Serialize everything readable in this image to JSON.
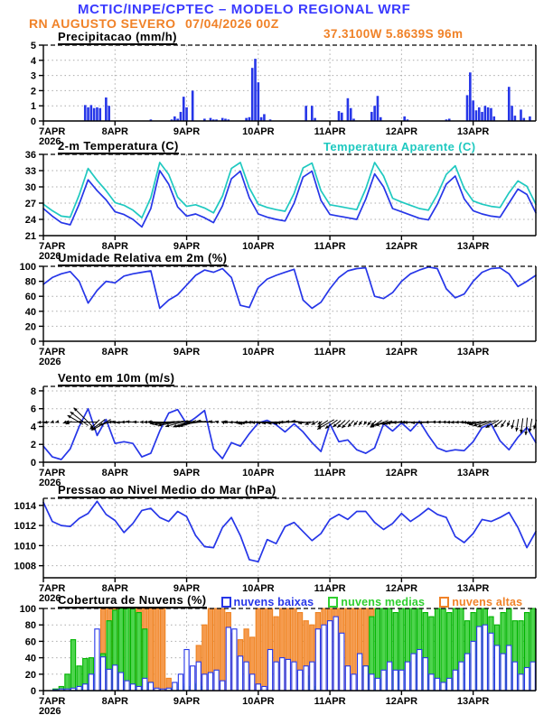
{
  "header": {
    "title": "MCTIC/INPE/CPTEC – MODELO REGIONAL WRF",
    "station": "RN AUGUSTO SEVERO",
    "run": "07/04/2026 00Z",
    "location": "37.3100W 5.8639S 96m"
  },
  "colors": {
    "header_blue": "#3a3aff",
    "orange_text": "#f08228",
    "blue": "#2636e8",
    "cyan": "#1fc9c0",
    "green_text": "#2fcf2f",
    "green_fill": "#4ed44e",
    "green_stroke": "#00b400",
    "orange_fill": "#f59b4e",
    "orange_stroke": "#ef8322",
    "grid": "#aaaaaa"
  },
  "x_axis": {
    "day_labels": [
      "7APR",
      "8APR",
      "9APR",
      "10APR",
      "11APR",
      "12APR",
      "13APR"
    ],
    "year_label": "2026",
    "hours_total": 165,
    "day_tick_hours": [
      0,
      24,
      48,
      72,
      96,
      120,
      144
    ]
  },
  "chart_data": [
    {
      "id": "precip",
      "type": "bar",
      "title": "Precipitacao (mm/h)",
      "ylim": [
        0,
        5
      ],
      "yticks": [
        0,
        1,
        2,
        3,
        4,
        5
      ],
      "bars": [
        [
          14,
          1.05
        ],
        [
          15,
          0.9
        ],
        [
          16,
          1.05
        ],
        [
          17,
          0.85
        ],
        [
          18,
          0.9
        ],
        [
          19,
          0.85
        ],
        [
          21,
          1.55
        ],
        [
          22,
          1.0
        ],
        [
          36,
          0.1
        ],
        [
          43,
          0.1
        ],
        [
          44,
          0.3
        ],
        [
          45,
          0.15
        ],
        [
          46,
          0.6
        ],
        [
          47,
          1.6
        ],
        [
          48,
          0.9
        ],
        [
          50,
          2.0
        ],
        [
          54,
          0.15
        ],
        [
          56,
          0.2
        ],
        [
          57,
          0.1
        ],
        [
          58,
          0.1
        ],
        [
          60,
          0.2
        ],
        [
          61,
          0.15
        ],
        [
          62,
          0.1
        ],
        [
          68,
          0.2
        ],
        [
          69,
          0.25
        ],
        [
          70,
          3.5
        ],
        [
          71,
          4.1
        ],
        [
          72,
          2.55
        ],
        [
          73,
          0.25
        ],
        [
          74,
          0.45
        ],
        [
          76,
          0.1
        ],
        [
          88,
          1.0
        ],
        [
          90,
          1.0
        ],
        [
          91,
          0.2
        ],
        [
          99,
          0.65
        ],
        [
          100,
          0.55
        ],
        [
          102,
          1.5
        ],
        [
          103,
          0.85
        ],
        [
          104,
          0.15
        ],
        [
          110,
          0.6
        ],
        [
          111,
          1.0
        ],
        [
          112,
          1.65
        ],
        [
          113,
          0.25
        ],
        [
          121,
          0.3
        ],
        [
          122,
          0.1
        ],
        [
          135,
          0.1
        ],
        [
          136,
          0.15
        ],
        [
          142,
          1.7
        ],
        [
          143,
          3.2
        ],
        [
          144,
          1.35
        ],
        [
          145,
          0.7
        ],
        [
          146,
          0.9
        ],
        [
          147,
          0.6
        ],
        [
          148,
          1.0
        ],
        [
          149,
          0.9
        ],
        [
          150,
          0.85
        ],
        [
          151,
          0.3
        ],
        [
          156,
          2.25
        ],
        [
          157,
          1.0
        ],
        [
          158,
          0.35
        ],
        [
          160,
          0.75
        ],
        [
          161,
          0.2
        ],
        [
          163,
          0.3
        ]
      ]
    },
    {
      "id": "temp",
      "type": "line",
      "title": "2-m Temperatura (C)",
      "right_label": "Temperatura Aparente (C)",
      "ylim": [
        21,
        36
      ],
      "yticks": [
        21,
        24,
        27,
        30,
        33,
        36
      ],
      "step_hours": 3,
      "series": [
        {
          "name": "2-m Temperatura (C)",
          "color_key": "blue",
          "values": [
            26.0,
            24.6,
            23.4,
            23.0,
            26.8,
            31.3,
            29.3,
            27.6,
            25.4,
            24.9,
            24.0,
            22.6,
            26.0,
            33.0,
            30.5,
            26.3,
            24.6,
            25.0,
            24.3,
            23.4,
            26.5,
            31.5,
            32.9,
            28.0,
            25.0,
            24.4,
            24.0,
            23.7,
            27.0,
            31.8,
            32.9,
            27.5,
            24.9,
            24.6,
            24.3,
            24.0,
            27.7,
            32.4,
            30.0,
            26.0,
            25.4,
            24.8,
            24.2,
            23.9,
            26.8,
            30.5,
            32.0,
            27.8,
            25.6,
            25.0,
            24.6,
            24.4,
            27.0,
            29.6,
            28.6,
            25.2
          ]
        },
        {
          "name": "Temperatura Aparente (C)",
          "color_key": "cyan",
          "values": [
            26.8,
            25.6,
            24.6,
            24.4,
            28.5,
            33.4,
            31.2,
            29.3,
            27.1,
            26.6,
            25.7,
            24.3,
            28.0,
            34.5,
            32.3,
            28.1,
            26.4,
            26.7,
            26.1,
            25.2,
            28.3,
            33.4,
            34.5,
            29.8,
            26.8,
            26.2,
            25.8,
            25.5,
            28.8,
            33.5,
            34.4,
            29.3,
            26.7,
            26.4,
            26.1,
            25.8,
            29.6,
            34.5,
            32.0,
            27.9,
            27.2,
            26.6,
            26.0,
            25.7,
            28.6,
            32.3,
            33.9,
            29.7,
            27.4,
            26.8,
            26.4,
            26.2,
            28.9,
            31.1,
            30.1,
            26.8
          ]
        }
      ]
    },
    {
      "id": "humidity",
      "type": "line",
      "title": "Umidade Relativa em 2m (%)",
      "ylim": [
        0,
        100
      ],
      "yticks": [
        0,
        20,
        40,
        60,
        80,
        100
      ],
      "step_hours": 3,
      "series": [
        {
          "name": "Umidade Relativa",
          "color_key": "blue",
          "values": [
            76,
            85,
            90,
            93,
            80,
            51,
            68,
            80,
            78,
            87,
            90,
            92,
            94,
            44,
            55,
            62,
            75,
            88,
            95,
            92,
            97,
            85,
            48,
            45,
            72,
            83,
            88,
            92,
            96,
            55,
            44,
            52,
            70,
            85,
            94,
            97,
            98,
            60,
            57,
            65,
            80,
            90,
            95,
            99,
            97,
            70,
            58,
            63,
            80,
            92,
            97,
            98,
            90,
            73,
            80,
            88
          ]
        }
      ]
    },
    {
      "id": "wind",
      "type": "line",
      "title": "Vento em 10m (m/s)",
      "ylim": [
        0,
        8.5
      ],
      "yticks": [
        0,
        2,
        4,
        6,
        8
      ],
      "step_hours": 3,
      "series": [
        {
          "name": "Velocidade do vento",
          "color_key": "blue",
          "values": [
            1.8,
            0.6,
            0.3,
            1.5,
            4.0,
            6.0,
            3.0,
            4.8,
            2.1,
            2.3,
            2.1,
            0.6,
            1.0,
            3.5,
            5.5,
            5.9,
            4.3,
            5.0,
            5.8,
            1.5,
            0.4,
            2.2,
            1.8,
            3.2,
            4.4,
            4.7,
            4.2,
            3.4,
            4.3,
            3.4,
            2.2,
            1.2,
            4.3,
            2.3,
            2.5,
            1.4,
            1.0,
            1.6,
            4.3,
            3.5,
            4.4,
            3.5,
            4.6,
            3.0,
            1.6,
            1.2,
            1.4,
            1.3,
            2.3,
            3.9,
            4.3,
            2.4,
            1.4,
            2.8,
            3.9,
            2.2
          ]
        }
      ],
      "arrows": {
        "center_value": 4.5,
        "dirs_deg_toward": [
          265,
          255,
          250,
          245,
          300,
          315,
          225,
          240,
          270,
          265,
          275,
          270,
          268,
          272,
          265,
          260,
          250,
          255,
          270,
          280,
          290,
          270,
          265,
          260,
          270,
          268,
          265,
          262,
          270,
          275,
          250,
          235,
          240,
          230,
          225,
          220,
          215,
          225,
          250,
          260,
          265,
          270,
          268,
          265,
          272,
          270,
          265,
          268,
          262,
          258,
          250,
          230,
          200,
          190,
          185,
          195
        ]
      }
    },
    {
      "id": "pressure",
      "type": "line",
      "title": "Pressao ao Nivel Medio do Mar (hPa)",
      "ylim": [
        1006.8,
        1014.7
      ],
      "yticks": [
        1008,
        1010,
        1012,
        1014
      ],
      "step_hours": 3,
      "series": [
        {
          "name": "Pressao ao nivel do mar",
          "color_key": "blue",
          "values": [
            1014.3,
            1012.4,
            1012.0,
            1011.9,
            1012.7,
            1013.2,
            1014.4,
            1013.1,
            1012.5,
            1011.3,
            1012.2,
            1013.5,
            1013.7,
            1012.8,
            1012.4,
            1013.4,
            1012.9,
            1011.0,
            1009.9,
            1009.8,
            1011.8,
            1012.8,
            1011.0,
            1008.6,
            1008.4,
            1010.6,
            1010.2,
            1011.9,
            1012.3,
            1011.4,
            1010.5,
            1011.2,
            1012.6,
            1013.1,
            1012.6,
            1013.4,
            1013.4,
            1012.3,
            1011.6,
            1012.2,
            1013.2,
            1012.4,
            1013.0,
            1013.7,
            1013.1,
            1012.8,
            1010.9,
            1010.3,
            1011.2,
            1012.6,
            1012.4,
            1012.8,
            1013.3,
            1011.8,
            1009.8,
            1011.4
          ]
        }
      ]
    },
    {
      "id": "clouds",
      "type": "bar",
      "title": "Cobertura de Nuvens (%)",
      "ylim": [
        0,
        100
      ],
      "yticks": [
        0,
        20,
        40,
        60,
        80,
        100
      ],
      "step_hours": 2,
      "legend": [
        {
          "label": "nuvens baixas",
          "color_key": "blue"
        },
        {
          "label": "nuvens medias",
          "color_key": "green_text"
        },
        {
          "label": "nuvens altas",
          "color_key": "orange_text"
        }
      ],
      "series": [
        {
          "name": "nuvens altas",
          "style": "orange",
          "values": [
            0,
            0,
            0,
            0,
            0,
            0,
            0,
            0,
            0,
            0,
            100,
            100,
            100,
            100,
            100,
            100,
            100,
            100,
            100,
            100,
            100,
            15,
            0,
            0,
            0,
            0,
            55,
            80,
            100,
            100,
            100,
            95,
            70,
            62,
            75,
            65,
            100,
            100,
            100,
            90,
            100,
            100,
            100,
            95,
            85,
            80,
            95,
            100,
            100,
            100,
            100,
            100,
            100,
            100,
            100,
            100,
            0,
            0,
            0,
            0,
            0,
            0,
            0,
            0,
            0,
            0,
            0,
            0,
            0,
            0,
            0,
            0,
            0,
            0,
            0,
            0,
            0,
            0,
            0,
            0,
            0,
            0,
            0
          ]
        },
        {
          "name": "nuvens medias",
          "style": "green",
          "values": [
            0,
            0,
            2,
            5,
            20,
            62,
            30,
            39,
            40,
            20,
            45,
            85,
            98,
            100,
            100,
            100,
            95,
            75,
            10,
            0,
            0,
            0,
            5,
            8,
            5,
            8,
            10,
            5,
            0,
            0,
            0,
            0,
            0,
            0,
            0,
            0,
            0,
            0,
            0,
            0,
            0,
            0,
            0,
            0,
            18,
            12,
            5,
            0,
            0,
            0,
            0,
            0,
            0,
            0,
            30,
            90,
            100,
            100,
            100,
            95,
            100,
            100,
            100,
            100,
            95,
            90,
            100,
            100,
            95,
            100,
            100,
            85,
            95,
            100,
            100,
            90,
            80,
            95,
            100,
            85,
            85,
            95,
            100
          ]
        },
        {
          "name": "nuvens baixas",
          "style": "blue-open",
          "values": [
            0,
            0,
            1,
            2,
            2,
            3,
            5,
            8,
            20,
            75,
            41,
            26,
            31,
            22,
            12,
            8,
            5,
            15,
            10,
            3,
            2,
            3,
            10,
            20,
            50,
            30,
            35,
            20,
            22,
            25,
            12,
            77,
            75,
            42,
            35,
            20,
            8,
            5,
            50,
            35,
            40,
            38,
            35,
            25,
            30,
            35,
            75,
            80,
            85,
            90,
            70,
            30,
            20,
            45,
            30,
            20,
            15,
            25,
            35,
            25,
            25,
            35,
            45,
            50,
            40,
            20,
            15,
            10,
            15,
            25,
            35,
            45,
            60,
            78,
            80,
            70,
            55,
            45,
            55,
            35,
            20,
            28,
            35
          ]
        }
      ]
    }
  ]
}
